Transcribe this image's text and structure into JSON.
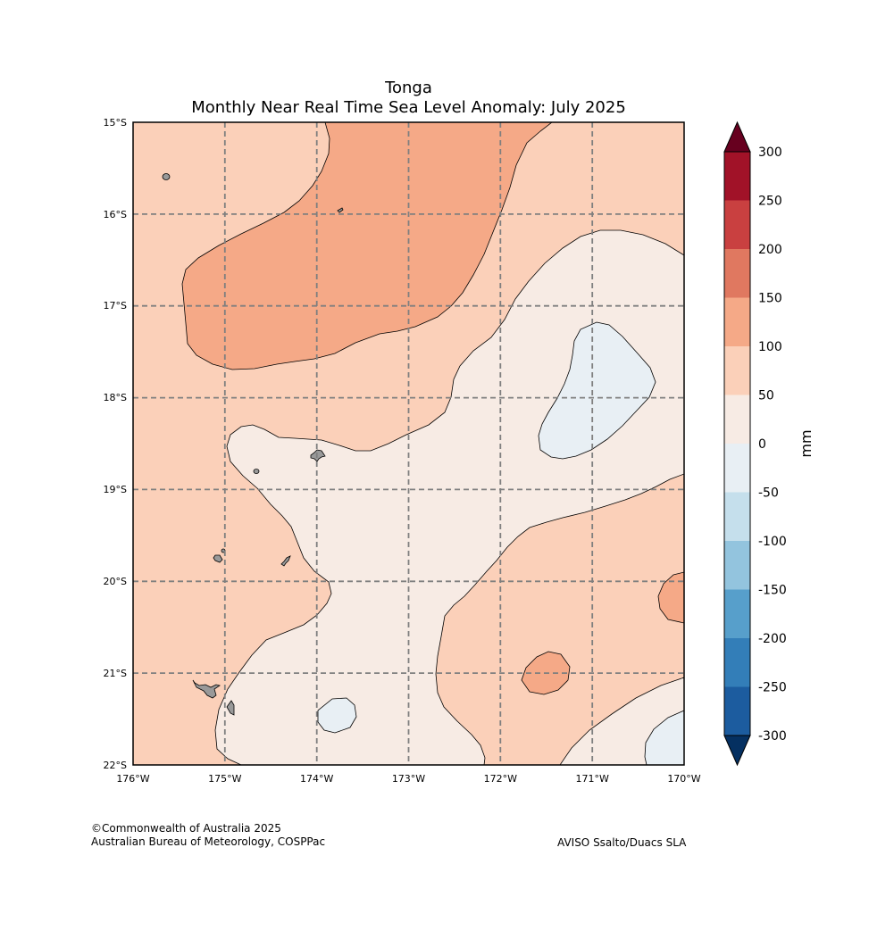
{
  "title": {
    "line1": "Tonga",
    "line2": "Monthly Near Real Time Sea Level Anomaly: July 2025"
  },
  "map": {
    "lat_labels": [
      "15°S",
      "16°S",
      "17°S",
      "18°S",
      "19°S",
      "20°S",
      "21°S",
      "22°S"
    ],
    "lon_labels": [
      "176°W",
      "175°W",
      "174°W",
      "173°W",
      "172°W",
      "171°W",
      "170°W"
    ],
    "extent": {
      "lon": [
        -176,
        -170
      ],
      "lat": [
        -22,
        -15
      ]
    }
  },
  "colorbar": {
    "unit": "mm",
    "levels": [
      "300",
      "250",
      "200",
      "150",
      "100",
      "50",
      "0",
      "-50",
      "-100",
      "-150",
      "-200",
      "-250",
      "-300"
    ],
    "colors": [
      "#67001f",
      "#a11228",
      "#c94040",
      "#e07860",
      "#f5a987",
      "#fbd0b9",
      "#f7ebe4",
      "#e8eff4",
      "#c5dfec",
      "#93c4de",
      "#579fcb",
      "#337eb8",
      "#1c5c9f",
      "#053061"
    ]
  },
  "legend_colors": {
    "anom_100_150": "#f5a987",
    "anom_50_100": "#fbd0b9",
    "anom_0_50": "#f7ebe4",
    "anom_m50_0": "#e8eff4",
    "land": "#999999"
  },
  "credits": {
    "copyright": "©Commonwealth of Australia 2025",
    "agency": "Australian Bureau of Meteorology, COSPPac",
    "source": "AVISO Ssalto/Duacs SLA"
  }
}
